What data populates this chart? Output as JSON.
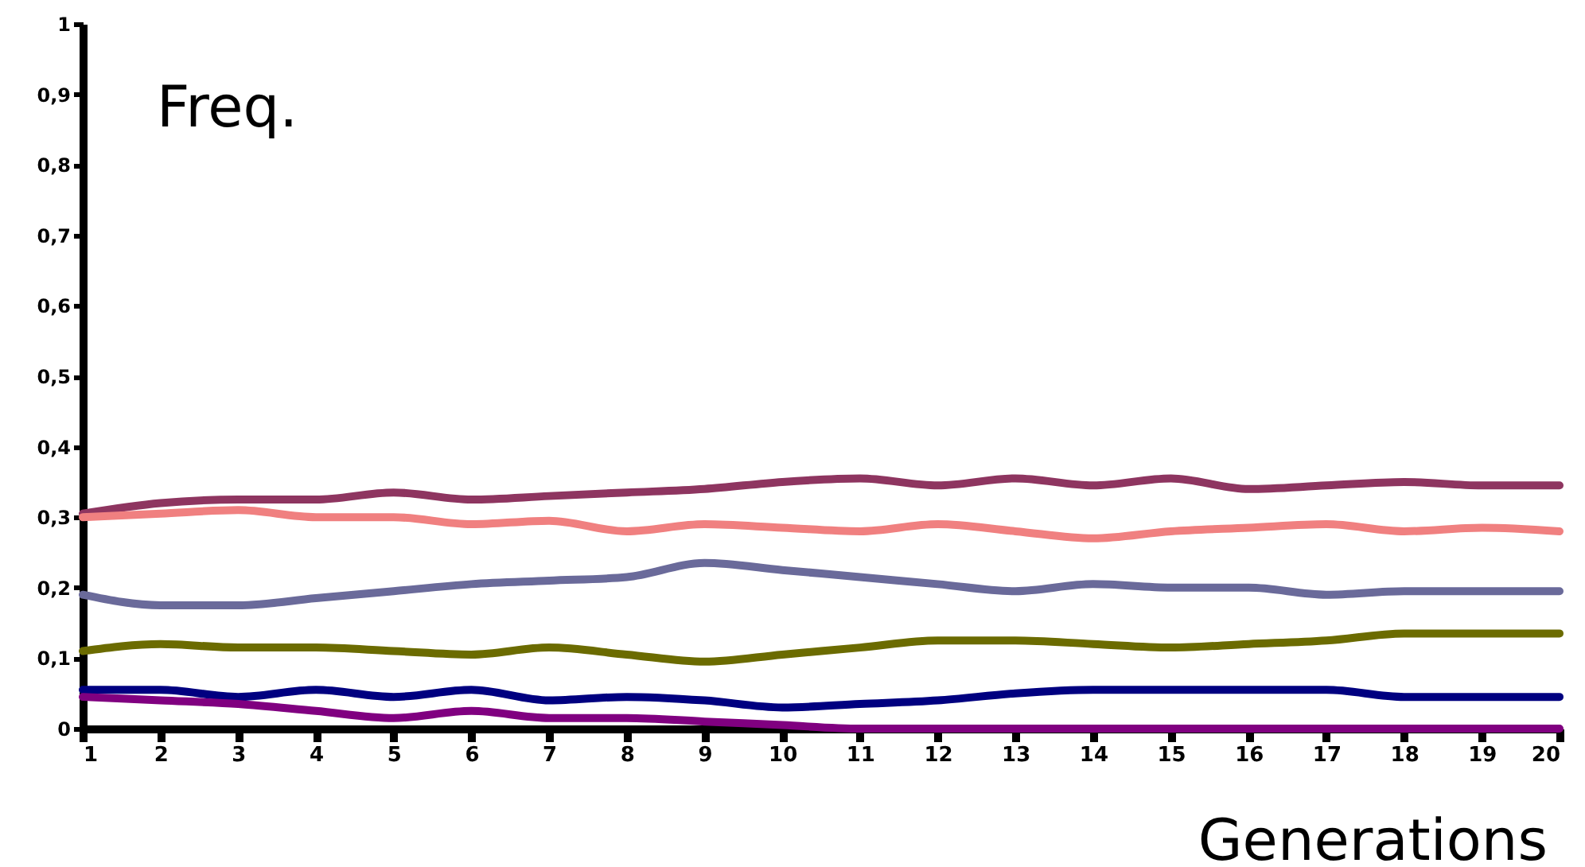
{
  "chart_data": {
    "type": "line",
    "xlabel": "Generations",
    "ylabel": "Freq.",
    "x": [
      1,
      2,
      3,
      4,
      5,
      6,
      7,
      8,
      9,
      10,
      11,
      12,
      13,
      14,
      15,
      16,
      17,
      18,
      19,
      20
    ],
    "xlim": [
      1,
      20
    ],
    "xticks": [
      1,
      2,
      3,
      4,
      5,
      6,
      7,
      8,
      9,
      10,
      11,
      12,
      13,
      14,
      15,
      16,
      17,
      18,
      19,
      20
    ],
    "ylim": [
      0,
      1
    ],
    "yticks": [
      0,
      {
        "value": 0.1,
        "label": "0,1"
      },
      {
        "value": 0.2,
        "label": "0,2"
      },
      {
        "value": 0.3,
        "label": "0,3"
      },
      {
        "value": 0.4,
        "label": "0,4"
      },
      {
        "value": 0.5,
        "label": "0,5"
      },
      {
        "value": 0.6,
        "label": "0,6"
      },
      {
        "value": 0.7,
        "label": "0,7"
      },
      {
        "value": 0.8,
        "label": "0,8"
      },
      {
        "value": 0.9,
        "label": "0,9"
      },
      1
    ],
    "series": [
      {
        "color": "#8e3560",
        "values": [
          0.305,
          0.32,
          0.325,
          0.325,
          0.335,
          0.325,
          0.33,
          0.335,
          0.34,
          0.35,
          0.355,
          0.345,
          0.355,
          0.345,
          0.355,
          0.34,
          0.345,
          0.35,
          0.345,
          0.345
        ]
      },
      {
        "color": "#f08080",
        "values": [
          0.3,
          0.305,
          0.31,
          0.3,
          0.3,
          0.29,
          0.295,
          0.28,
          0.29,
          0.285,
          0.28,
          0.29,
          0.28,
          0.27,
          0.28,
          0.285,
          0.29,
          0.28,
          0.285,
          0.28
        ]
      },
      {
        "color": "#6a6a9a",
        "values": [
          0.19,
          0.175,
          0.175,
          0.185,
          0.195,
          0.205,
          0.21,
          0.215,
          0.235,
          0.225,
          0.215,
          0.205,
          0.195,
          0.205,
          0.2,
          0.2,
          0.19,
          0.195,
          0.195,
          0.195
        ]
      },
      {
        "color": "#6b6b00",
        "values": [
          0.11,
          0.12,
          0.115,
          0.115,
          0.11,
          0.105,
          0.115,
          0.105,
          0.095,
          0.105,
          0.115,
          0.125,
          0.125,
          0.12,
          0.115,
          0.12,
          0.125,
          0.135,
          0.135,
          0.135
        ]
      },
      {
        "color": "#000080",
        "values": [
          0.055,
          0.055,
          0.045,
          0.055,
          0.045,
          0.055,
          0.04,
          0.045,
          0.04,
          0.03,
          0.035,
          0.04,
          0.05,
          0.055,
          0.055,
          0.055,
          0.055,
          0.045,
          0.045,
          0.045
        ]
      },
      {
        "color": "#800080",
        "values": [
          0.045,
          0.04,
          0.035,
          0.025,
          0.015,
          0.025,
          0.015,
          0.015,
          0.01,
          0.005,
          0,
          0,
          0,
          0,
          0,
          0,
          0,
          0,
          0,
          0
        ]
      }
    ]
  }
}
